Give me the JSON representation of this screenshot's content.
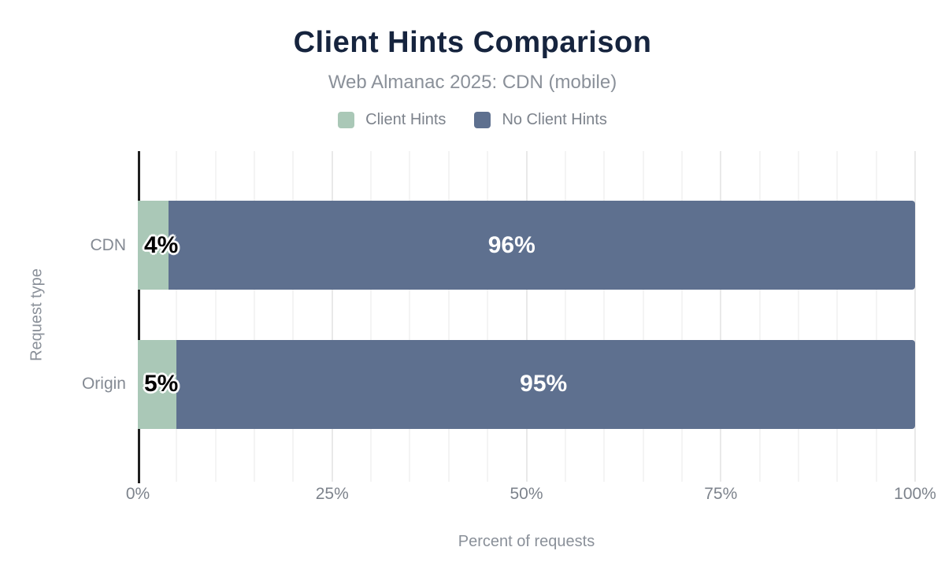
{
  "header": {
    "title": "Client Hints Comparison",
    "subtitle": "Web Almanac 2025: CDN (mobile)"
  },
  "legend": [
    {
      "label": "Client Hints",
      "color": "#aac8b7"
    },
    {
      "label": "No Client Hints",
      "color": "#5e708f"
    }
  ],
  "chart_data": {
    "type": "bar",
    "orientation": "horizontal",
    "stacked": true,
    "title": "Client Hints Comparison",
    "subtitle": "Web Almanac 2025: CDN (mobile)",
    "categories": [
      "CDN",
      "Origin"
    ],
    "series": [
      {
        "name": "Client Hints",
        "color": "#aac8b7",
        "values": [
          4,
          5
        ],
        "label_style": "dark-outlined"
      },
      {
        "name": "No Client Hints",
        "color": "#5e708f",
        "values": [
          96,
          95
        ],
        "label_style": "light",
        "label_x_percent": [
          48.1,
          52.2
        ]
      }
    ],
    "value_unit": "%",
    "xlabel": "Percent of requests",
    "ylabel": "Request type",
    "xlim": [
      0,
      100
    ],
    "x_ticks": [
      {
        "value": 0,
        "label": "0%"
      },
      {
        "value": 25,
        "label": "25%"
      },
      {
        "value": 50,
        "label": "50%"
      },
      {
        "value": 75,
        "label": "75%"
      },
      {
        "value": 100,
        "label": "100%"
      }
    ],
    "grid": {
      "minor_step": 5,
      "major_step": 25,
      "minor_color": "#f4f4f4",
      "major_color": "#e9e9e9"
    },
    "legend_position": "top"
  },
  "colors": {
    "background": "#ffffff",
    "title_text": "#16243e",
    "muted_text": "#8a9099",
    "tick_text": "#7d838c",
    "axis_line": "#1f1f1f"
  }
}
